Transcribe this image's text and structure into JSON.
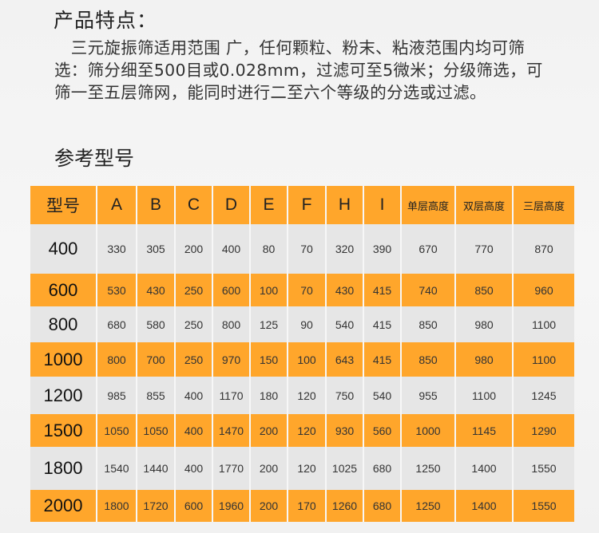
{
  "features": {
    "title": "产品特点：",
    "text": "　三元旋振筛适用范围 广，任何颗粒、粉末、粘液范围内均可筛选：筛分细至500目或0.028mm，过滤可至5微米；分级筛选，可筛一至五层筛网，能同时进行二至六个等级的分选或过滤。"
  },
  "models": {
    "title": "参考型号",
    "headers": [
      "型号",
      "A",
      "B",
      "C",
      "D",
      "E",
      "F",
      "H",
      "I",
      "单层高度",
      "双层高度",
      "三层高度"
    ],
    "rows": [
      [
        "400",
        "330",
        "305",
        "200",
        "400",
        "80",
        "70",
        "320",
        "390",
        "670",
        "770",
        "870"
      ],
      [
        "600",
        "530",
        "430",
        "250",
        "600",
        "100",
        "70",
        "430",
        "415",
        "740",
        "850",
        "960"
      ],
      [
        "800",
        "680",
        "580",
        "250",
        "800",
        "125",
        "90",
        "540",
        "415",
        "850",
        "980",
        "1100"
      ],
      [
        "1000",
        "800",
        "700",
        "250",
        "970",
        "150",
        "100",
        "643",
        "415",
        "850",
        "980",
        "1100"
      ],
      [
        "1200",
        "985",
        "855",
        "400",
        "1170",
        "180",
        "120",
        "750",
        "540",
        "955",
        "1100",
        "1245"
      ],
      [
        "1500",
        "1050",
        "1050",
        "400",
        "1470",
        "200",
        "120",
        "930",
        "560",
        "1000",
        "1145",
        "1290"
      ],
      [
        "1800",
        "1540",
        "1440",
        "400",
        "1770",
        "200",
        "120",
        "1025",
        "680",
        "1250",
        "1400",
        "1550"
      ],
      [
        "2000",
        "1800",
        "1720",
        "600",
        "1960",
        "200",
        "170",
        "1260",
        "680",
        "1250",
        "1400",
        "1550"
      ]
    ]
  },
  "colors": {
    "orange": "#ffa62b",
    "grey": "#e6e6e6"
  }
}
